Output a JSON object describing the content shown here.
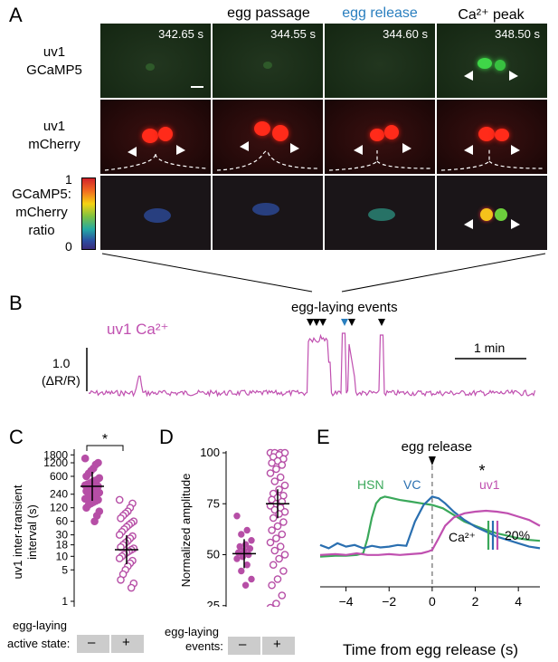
{
  "panel_letters": {
    "a": "A",
    "b": "B",
    "c": "C",
    "d": "D",
    "e": "E"
  },
  "panelA": {
    "column_headers": [
      "",
      "egg passage",
      "egg release",
      "Ca²⁺ peak"
    ],
    "timestamps": [
      "342.65 s",
      "344.55 s",
      "344.60 s",
      "348.50 s"
    ],
    "row_labels": {
      "gcamp": [
        "uv1",
        "GCaMP5"
      ],
      "mcherry": [
        "uv1",
        "mCherry"
      ],
      "ratio": [
        "GCaMP5:",
        "mCherry",
        "ratio"
      ]
    },
    "colorbar_ticks": [
      "1",
      "0"
    ],
    "colors": {
      "header_egg_release": "#2a7fbf"
    }
  },
  "panelB": {
    "trace_label": "uv1 Ca²⁺",
    "events_label": "egg-laying events",
    "scale_y_value": "1.0",
    "scale_y_unit": "(ΔR/R)",
    "scale_x": "1 min",
    "colors": {
      "trace": "#c050b0",
      "egg_release_marker": "#2a7fbf"
    }
  },
  "chart_data": [
    {
      "type": "scatter",
      "panel": "C",
      "ylabel": "uv1 inter-transient interval (s)",
      "y_scale": "log",
      "yticks": [
        "1800",
        "1200",
        "600",
        "240",
        "120",
        "60",
        "30",
        "18",
        "10",
        "5",
        "1"
      ],
      "xlabel_lines": [
        "egg-laying",
        "active state:"
      ],
      "categories": [
        "–",
        "+"
      ],
      "significance": "*",
      "series": [
        {
          "values": [
            1500,
            1200,
            1100,
            900,
            800,
            700,
            600,
            550,
            500,
            480,
            450,
            420,
            400,
            380,
            360,
            340,
            320,
            300,
            290,
            280,
            260,
            250,
            240,
            230,
            220,
            200,
            190,
            180,
            170,
            160,
            150,
            140,
            120,
            100,
            80,
            60
          ]
        },
        {
          "values": [
            180,
            150,
            120,
            100,
            90,
            80,
            70,
            60,
            55,
            50,
            45,
            40,
            35,
            30,
            28,
            25,
            22,
            20,
            18,
            16,
            15,
            14,
            13,
            12,
            11,
            10,
            9,
            8,
            7,
            6,
            5,
            4,
            3,
            2.5,
            2
          ]
        }
      ],
      "medians": [
        360,
        14
      ],
      "colors": {
        "filled": "#b64ea6",
        "open": "#b64ea6"
      }
    },
    {
      "type": "scatter",
      "panel": "D",
      "ylabel": "Normalized amplitude",
      "yticks": [
        "100",
        "75",
        "50",
        "25"
      ],
      "ylim": [
        20,
        100
      ],
      "xlabel_lines": [
        "egg-laying",
        "events:"
      ],
      "categories": [
        "–",
        "+"
      ],
      "series": [
        {
          "values": [
            69,
            62,
            60,
            57,
            55,
            54,
            53,
            52,
            51,
            50,
            49,
            48,
            45,
            42,
            38,
            35
          ]
        },
        {
          "values": [
            100,
            100,
            100,
            100,
            99,
            98,
            97,
            96,
            95,
            94,
            92,
            90,
            88,
            86,
            84,
            82,
            80,
            79,
            78,
            77,
            76,
            75,
            74,
            73,
            72,
            71,
            70,
            68,
            66,
            64,
            62,
            60,
            58,
            56,
            54,
            52,
            50,
            48,
            45,
            42,
            38,
            35,
            30,
            26,
            24,
            22
          ]
        }
      ],
      "medians": [
        50.5,
        75
      ],
      "colors": {
        "filled": "#b64ea6",
        "open": "#b64ea6"
      }
    },
    {
      "type": "line",
      "panel": "E",
      "title": "egg release",
      "xlabel": "Time from egg release (s)",
      "xticks": [
        "-4",
        "-2",
        "0",
        "2",
        "4"
      ],
      "xlim": [
        -5.2,
        5
      ],
      "significance": "*",
      "scale_label": "Ca²⁺",
      "scale_value": "20%",
      "series": [
        {
          "name": "HSN",
          "color": "#3aa85a",
          "x": [
            -5.2,
            -4.5,
            -4,
            -3.5,
            -3.2,
            -3,
            -2.8,
            -2.6,
            -2.4,
            -2.2,
            -2,
            -1.5,
            -1,
            -0.5,
            0,
            0.5,
            1,
            1.5,
            2,
            2.5,
            3,
            3.5,
            4,
            4.5,
            5
          ],
          "y": [
            8,
            9,
            9,
            10,
            12,
            30,
            55,
            72,
            78,
            80,
            79,
            76,
            74,
            72,
            70,
            66,
            58,
            50,
            45,
            40,
            36,
            33,
            30,
            28,
            27
          ]
        },
        {
          "name": "VC",
          "color": "#2a6fb0",
          "x": [
            -5.2,
            -4.8,
            -4.4,
            -4,
            -3.6,
            -3.2,
            -2.8,
            -2.4,
            -2,
            -1.6,
            -1.2,
            -0.8,
            -0.4,
            0,
            0.3,
            0.6,
            1,
            1.5,
            2,
            2.5,
            3,
            3.5,
            4,
            4.5,
            5
          ],
          "y": [
            22,
            18,
            24,
            20,
            22,
            18,
            21,
            19,
            20,
            22,
            21,
            50,
            70,
            80,
            78,
            72,
            62,
            52,
            44,
            38,
            32,
            28,
            24,
            20,
            18
          ]
        },
        {
          "name": "uv1",
          "color": "#c050b0",
          "x": [
            -5.2,
            -4.5,
            -4,
            -3.5,
            -3,
            -2.5,
            -2,
            -1.5,
            -1,
            -0.5,
            -0.2,
            0,
            0.3,
            0.6,
            1,
            1.5,
            2,
            2.5,
            3,
            3.5,
            4,
            4.5,
            5
          ],
          "y": [
            10,
            11,
            10,
            12,
            10,
            10,
            11,
            10,
            11,
            12,
            14,
            16,
            30,
            45,
            55,
            60,
            62,
            63,
            62,
            60,
            56,
            52,
            45
          ]
        }
      ]
    }
  ]
}
